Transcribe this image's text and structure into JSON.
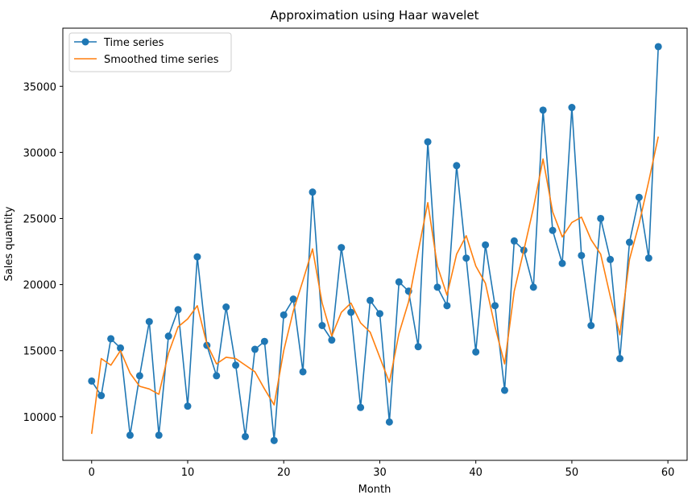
{
  "chart_data": {
    "type": "line",
    "title": "Approximation using Haar wavelet",
    "xlabel": "Month",
    "ylabel": "Sales quantity",
    "xlim": [
      -3,
      62
    ],
    "ylim": [
      6700,
      39400
    ],
    "xticks": [
      0,
      10,
      20,
      30,
      40,
      50,
      60
    ],
    "yticks": [
      10000,
      15000,
      20000,
      25000,
      30000,
      35000
    ],
    "grid": false,
    "legend_position": "upper-left",
    "series": [
      {
        "name": "Time series",
        "color": "#1f77b4",
        "marker": "circle",
        "x": [
          0,
          1,
          2,
          3,
          4,
          5,
          6,
          7,
          8,
          9,
          10,
          11,
          12,
          13,
          14,
          15,
          16,
          17,
          18,
          19,
          20,
          21,
          22,
          23,
          24,
          25,
          26,
          27,
          28,
          29,
          30,
          31,
          32,
          33,
          34,
          35,
          36,
          37,
          38,
          39,
          40,
          41,
          42,
          43,
          44,
          45,
          46,
          47,
          48,
          49,
          50,
          51,
          52,
          53,
          54,
          55,
          56,
          57,
          58,
          59
        ],
        "values": [
          12700,
          11600,
          15900,
          15200,
          8600,
          13100,
          17200,
          8600,
          16100,
          18100,
          10800,
          22100,
          15400,
          13100,
          18300,
          13900,
          8500,
          15100,
          15700,
          8200,
          17700,
          18900,
          13400,
          27000,
          16900,
          15800,
          22800,
          17900,
          10700,
          18800,
          17800,
          9600,
          20200,
          19500,
          15300,
          30800,
          19800,
          18400,
          29000,
          22000,
          14900,
          23000,
          18400,
          12000,
          23300,
          22600,
          19800,
          33200,
          24100,
          21600,
          33400,
          22200,
          16900,
          25000,
          21900,
          14400,
          23200,
          26600,
          22000,
          38000
        ]
      },
      {
        "name": "Smoothed time series",
        "color": "#ff7f0e",
        "marker": "none",
        "x": [
          0,
          1,
          2,
          3,
          4,
          5,
          6,
          7,
          8,
          9,
          10,
          11,
          12,
          13,
          14,
          15,
          16,
          17,
          18,
          19,
          20,
          21,
          22,
          23,
          24,
          25,
          26,
          27,
          28,
          29,
          30,
          31,
          32,
          33,
          34,
          35,
          36,
          37,
          38,
          39,
          40,
          41,
          42,
          43,
          44,
          45,
          46,
          47,
          48,
          49,
          50,
          51,
          52,
          53,
          54,
          55,
          56,
          57,
          58,
          59
        ],
        "values": [
          8700,
          14400,
          13900,
          15000,
          13300,
          12300,
          12100,
          11700,
          14800,
          16800,
          17400,
          18400,
          15500,
          14000,
          14500,
          14400,
          13900,
          13400,
          12100,
          10900,
          15000,
          18000,
          20300,
          22700,
          18600,
          16100,
          17900,
          18600,
          17100,
          16400,
          14500,
          12600,
          16300,
          18700,
          22500,
          26200,
          21400,
          19200,
          22300,
          23700,
          21400,
          20100,
          16800,
          14000,
          19500,
          22600,
          25800,
          29500,
          25500,
          23600,
          24700,
          25100,
          23400,
          22300,
          19100,
          16200,
          21900,
          24600,
          27800,
          31200
        ]
      }
    ]
  }
}
